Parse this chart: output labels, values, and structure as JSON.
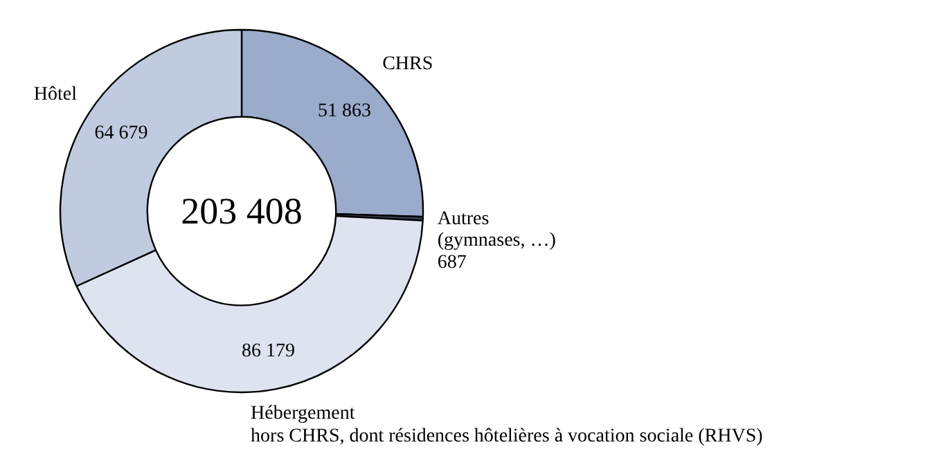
{
  "chart_data": {
    "type": "donut",
    "categories": [
      "CHRS",
      "Autres\n(gymnases, …)",
      "Hébergement\nhors CHRS, dont résidences hôtelières à vocation sociale (RHVS)",
      "Hôtel"
    ],
    "values": [
      51863,
      687,
      86179,
      64679
    ],
    "colors": [
      "#9aabcb",
      "#3a4256",
      "#dde3ef",
      "#c0cbe0"
    ],
    "value_labels": [
      "51 863",
      "687",
      "86 179",
      "64 679"
    ],
    "annotations": [
      "203 408"
    ]
  }
}
